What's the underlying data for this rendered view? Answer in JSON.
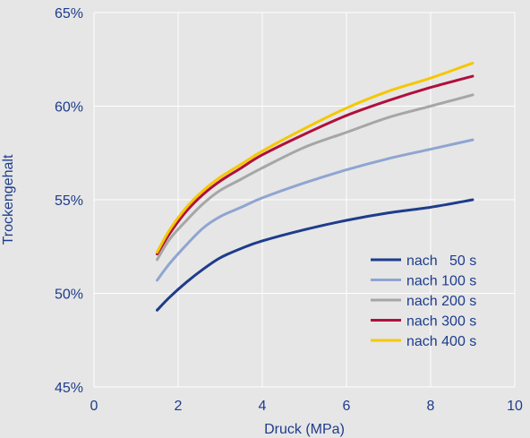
{
  "chart_data": {
    "type": "line",
    "xlabel": "Druck (MPa)",
    "ylabel": "Trockengehalt",
    "xlim": [
      0,
      10
    ],
    "ylim": [
      45,
      65
    ],
    "x_ticks": [
      0,
      2,
      4,
      6,
      8,
      10
    ],
    "x_tick_labels": [
      "0",
      "2",
      "4",
      "6",
      "8",
      "10"
    ],
    "y_ticks": [
      45,
      50,
      55,
      60,
      65
    ],
    "y_tick_labels": [
      "45%",
      "50%",
      "55%",
      "60%",
      "65%"
    ],
    "grid": true,
    "legend_position": "bottom-right",
    "colors": {
      "background": "#e6e6e6",
      "plot_background": "#e6e6e6",
      "grid": "#ffffff",
      "text": "#1e3c8c"
    },
    "series": [
      {
        "name": "nach   50 s",
        "color": "#1e3c8c",
        "x": [
          1.5,
          1.8,
          2.2,
          2.6,
          3.0,
          3.5,
          4.0,
          5.0,
          6.0,
          7.0,
          8.0,
          9.0
        ],
        "y": [
          49.1,
          49.8,
          50.6,
          51.3,
          51.9,
          52.4,
          52.8,
          53.4,
          53.9,
          54.3,
          54.6,
          55.0
        ]
      },
      {
        "name": "nach 100 s",
        "color": "#8fa5d1",
        "x": [
          1.5,
          1.8,
          2.2,
          2.6,
          3.0,
          3.5,
          4.0,
          5.0,
          6.0,
          7.0,
          8.0,
          9.0
        ],
        "y": [
          50.7,
          51.6,
          52.6,
          53.5,
          54.1,
          54.6,
          55.1,
          55.9,
          56.6,
          57.2,
          57.7,
          58.2
        ]
      },
      {
        "name": "nach 200 s",
        "color": "#a6a6a6",
        "x": [
          1.5,
          1.8,
          2.2,
          2.6,
          3.0,
          3.5,
          4.0,
          5.0,
          6.0,
          7.0,
          8.0,
          9.0
        ],
        "y": [
          51.8,
          52.9,
          53.9,
          54.8,
          55.5,
          56.1,
          56.7,
          57.8,
          58.6,
          59.4,
          60.0,
          60.6
        ]
      },
      {
        "name": "nach 300 s",
        "color": "#b0103c",
        "x": [
          1.5,
          1.8,
          2.2,
          2.6,
          3.0,
          3.5,
          4.0,
          5.0,
          6.0,
          7.0,
          8.0,
          9.0
        ],
        "y": [
          52.1,
          53.2,
          54.4,
          55.3,
          56.0,
          56.7,
          57.4,
          58.5,
          59.5,
          60.3,
          61.0,
          61.6
        ]
      },
      {
        "name": "nach 400 s",
        "color": "#f5c800",
        "x": [
          1.5,
          1.8,
          2.2,
          2.6,
          3.0,
          3.5,
          4.0,
          5.0,
          6.0,
          7.0,
          8.0,
          9.0
        ],
        "y": [
          52.2,
          53.4,
          54.6,
          55.5,
          56.2,
          56.9,
          57.6,
          58.8,
          59.9,
          60.8,
          61.5,
          62.3
        ]
      }
    ]
  }
}
